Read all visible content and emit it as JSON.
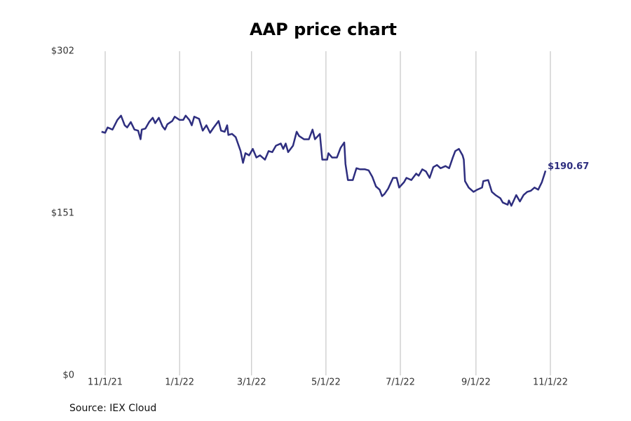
{
  "chart_data": {
    "type": "line",
    "title": "AAP price chart",
    "source": "Source: IEX Cloud",
    "color": "#2e2e7f",
    "grid": true,
    "x": [
      "2021-10-29",
      "2021-11-01",
      "2021-11-03",
      "2021-11-07",
      "2021-11-11",
      "2021-11-14",
      "2021-11-17",
      "2021-11-19",
      "2021-11-22",
      "2021-11-25",
      "2021-11-28",
      "2021-11-30",
      "2021-12-01",
      "2021-12-04",
      "2021-12-07",
      "2021-12-10",
      "2021-12-12",
      "2021-12-15",
      "2021-12-18",
      "2021-12-20",
      "2021-12-22",
      "2021-12-26",
      "2021-12-28",
      "2022-01-01",
      "2022-01-04",
      "2022-01-06",
      "2022-01-09",
      "2022-01-11",
      "2022-01-13",
      "2022-01-17",
      "2022-01-20",
      "2022-01-23",
      "2022-01-26",
      "2022-01-29",
      "2022-02-02",
      "2022-02-04",
      "2022-02-07",
      "2022-02-09",
      "2022-02-10",
      "2022-02-13",
      "2022-02-16",
      "2022-02-20",
      "2022-02-22",
      "2022-02-24",
      "2022-02-27",
      "2022-03-02",
      "2022-03-05",
      "2022-03-08",
      "2022-03-12",
      "2022-03-15",
      "2022-03-18",
      "2022-03-21",
      "2022-03-25",
      "2022-03-27",
      "2022-03-29",
      "2022-03-31",
      "2022-04-04",
      "2022-04-07",
      "2022-04-09",
      "2022-04-13",
      "2022-04-17",
      "2022-04-20",
      "2022-04-22",
      "2022-04-26",
      "2022-04-28",
      "2022-05-02",
      "2022-05-03",
      "2022-05-06",
      "2022-05-10",
      "2022-05-13",
      "2022-05-16",
      "2022-05-17",
      "2022-05-19",
      "2022-05-23",
      "2022-05-26",
      "2022-05-29",
      "2022-06-02",
      "2022-06-05",
      "2022-06-08",
      "2022-06-11",
      "2022-06-14",
      "2022-06-16",
      "2022-06-18",
      "2022-06-21",
      "2022-06-25",
      "2022-06-28",
      "2022-06-30",
      "2022-07-04",
      "2022-07-06",
      "2022-07-10",
      "2022-07-14",
      "2022-07-16",
      "2022-07-19",
      "2022-07-22",
      "2022-07-25",
      "2022-07-28",
      "2022-07-31",
      "2022-08-03",
      "2022-08-07",
      "2022-08-10",
      "2022-08-13",
      "2022-08-15",
      "2022-08-18",
      "2022-08-21",
      "2022-08-22",
      "2022-08-23",
      "2022-08-26",
      "2022-08-30",
      "2022-09-02",
      "2022-09-06",
      "2022-09-07",
      "2022-09-11",
      "2022-09-14",
      "2022-09-17",
      "2022-09-21",
      "2022-09-23",
      "2022-09-27",
      "2022-09-28",
      "2022-09-30",
      "2022-10-04",
      "2022-10-07",
      "2022-10-10",
      "2022-10-13",
      "2022-10-16",
      "2022-10-19",
      "2022-10-22",
      "2022-10-25",
      "2022-10-27",
      "2022-10-28"
    ],
    "values": [
      227,
      226,
      231,
      229,
      238,
      242,
      233,
      231,
      236,
      229,
      228,
      220,
      229,
      230,
      236,
      240,
      235,
      240,
      232,
      229,
      234,
      237,
      241,
      238,
      238,
      242,
      238,
      233,
      241,
      239,
      228,
      233,
      226,
      231,
      237,
      228,
      227,
      233,
      224,
      225,
      222,
      209,
      198,
      207,
      205,
      211,
      203,
      205,
      201,
      209,
      208,
      214,
      216,
      211,
      216,
      208,
      214,
      227,
      223,
      220,
      220,
      229,
      220,
      225,
      201,
      201,
      207,
      203,
      203,
      212,
      217,
      197,
      182,
      182,
      193,
      192,
      192,
      191,
      185,
      176,
      173,
      167,
      169,
      174,
      184,
      184,
      175,
      180,
      184,
      182,
      188,
      186,
      192,
      190,
      184,
      194,
      196,
      193,
      195,
      193,
      203,
      209,
      211,
      205,
      201,
      181,
      175,
      171,
      173,
      175,
      181,
      182,
      171,
      168,
      165,
      161,
      159,
      163,
      158,
      168,
      162,
      168,
      171,
      172,
      175,
      173,
      180,
      187,
      190.67
    ],
    "value_labels": [
      null,
      null,
      null,
      null,
      null,
      null,
      null,
      null,
      null,
      null,
      null,
      null,
      null,
      null,
      null,
      null,
      null,
      null,
      null,
      null,
      null,
      null,
      null,
      null,
      null,
      null,
      null,
      null,
      null,
      null,
      null,
      null,
      null,
      null,
      null,
      null,
      null,
      null,
      null,
      null,
      null,
      null,
      null,
      null,
      null,
      null,
      null,
      null,
      null,
      null,
      null,
      null,
      null,
      null,
      null,
      null,
      null,
      null,
      null,
      null,
      null,
      null,
      null,
      null,
      null,
      null,
      null,
      null,
      null,
      null,
      null,
      null,
      null,
      null,
      null,
      null,
      null,
      null,
      null,
      null,
      null,
      null,
      null,
      null,
      null,
      null,
      null,
      null,
      null,
      null,
      null,
      null,
      null,
      null,
      null,
      null,
      null,
      null,
      null,
      null,
      null,
      null,
      null,
      null,
      null,
      null,
      null,
      null,
      null,
      null,
      null,
      null,
      null,
      null,
      null,
      null,
      null,
      null,
      null,
      null,
      null,
      null,
      null,
      null,
      null,
      null,
      null,
      null,
      "$190.67"
    ],
    "xlim": [
      "2021-10-09",
      "2022-11-28"
    ],
    "xticks": [
      {
        "value": "2021-11-01",
        "label": "11/1/21"
      },
      {
        "value": "2022-01-01",
        "label": "1/1/22"
      },
      {
        "value": "2022-03-01",
        "label": "3/1/22"
      },
      {
        "value": "2022-05-01",
        "label": "5/1/22"
      },
      {
        "value": "2022-07-01",
        "label": "7/1/22"
      },
      {
        "value": "2022-09-01",
        "label": "9/1/22"
      },
      {
        "value": "2022-11-01",
        "label": "11/1/22"
      }
    ],
    "ylim": [
      0,
      302
    ],
    "yticks": [
      {
        "value": 0,
        "label": "$0"
      },
      {
        "value": 151,
        "label": "$151"
      },
      {
        "value": 302,
        "label": "$302"
      }
    ]
  }
}
